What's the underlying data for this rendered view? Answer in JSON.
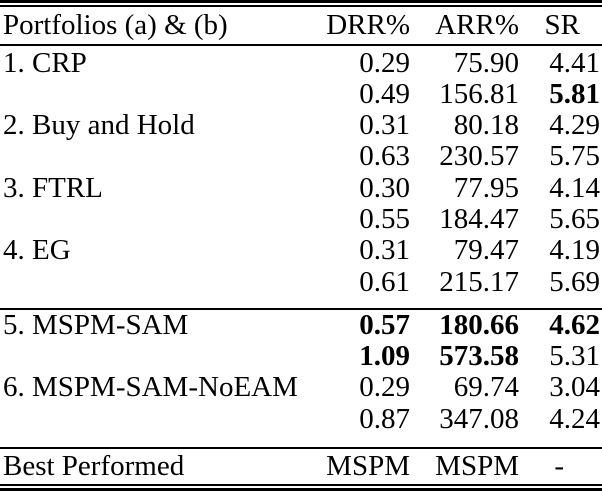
{
  "page": {
    "background_color": "#ffffff",
    "text_color": "#000000",
    "rule_color": "#000000"
  },
  "table": {
    "columns": [
      "Portfolios (a) & (b)",
      "DRR%",
      "ARR%",
      "SR"
    ],
    "rows": [
      {
        "label": "1. CRP",
        "a": {
          "drr": "0.29",
          "arr": "75.90",
          "sr": "4.41"
        },
        "b": {
          "drr": "0.49",
          "arr": "156.81",
          "sr": "5.81"
        }
      },
      {
        "label": "2. Buy and Hold",
        "a": {
          "drr": "0.31",
          "arr": "80.18",
          "sr": "4.29"
        },
        "b": {
          "drr": "0.63",
          "arr": "230.57",
          "sr": "5.75"
        }
      },
      {
        "label": "3. FTRL",
        "a": {
          "drr": "0.30",
          "arr": "77.95",
          "sr": "4.14"
        },
        "b": {
          "drr": "0.55",
          "arr": "184.47",
          "sr": "5.65"
        }
      },
      {
        "label": "4. EG",
        "a": {
          "drr": "0.31",
          "arr": "79.47",
          "sr": "4.19"
        },
        "b": {
          "drr": "0.61",
          "arr": "215.17",
          "sr": "5.69"
        }
      },
      {
        "label": "5. MSPM-SAM",
        "a": {
          "drr": "0.57",
          "arr": "180.66",
          "sr": "4.62"
        },
        "b": {
          "drr": "1.09",
          "arr": "573.58",
          "sr": "5.31"
        }
      },
      {
        "label": "6. MSPM-SAM-NoEAM",
        "a": {
          "drr": "0.29",
          "arr": "69.74",
          "sr": "3.04"
        },
        "b": {
          "drr": "0.87",
          "arr": "347.08",
          "sr": "4.24"
        }
      }
    ],
    "footer": {
      "label": "Best Performed",
      "drr": "MSPM",
      "arr": "MSPM",
      "sr": "-"
    }
  }
}
